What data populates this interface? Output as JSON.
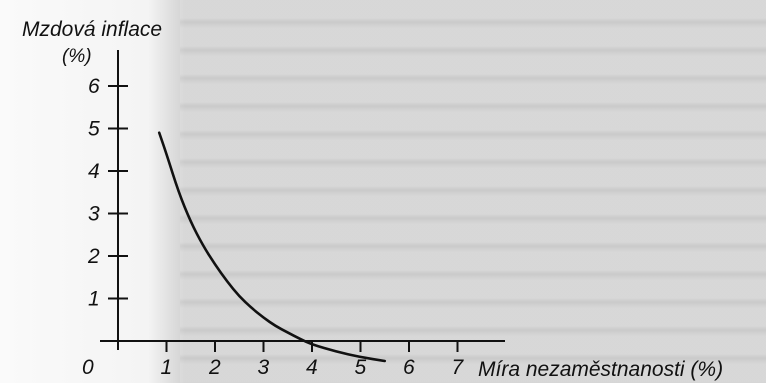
{
  "chart_data": {
    "type": "line",
    "ylabel": "Mzdová inflace",
    "yunit": "(%)",
    "xlabel": "Míra nezaměstnanosti (%)",
    "origin_label": "0",
    "x_ticks": [
      "1",
      "2",
      "3",
      "4",
      "5",
      "6",
      "7"
    ],
    "y_ticks": [
      "1",
      "2",
      "3",
      "4",
      "5",
      "6"
    ],
    "xlim": [
      0,
      7.5
    ],
    "ylim": [
      0,
      7.5
    ],
    "grid": false,
    "series": [
      {
        "color": "#111111",
        "points": [
          [
            0.85,
            4.9
          ],
          [
            1.0,
            4.4
          ],
          [
            1.25,
            3.5
          ],
          [
            1.5,
            2.8
          ],
          [
            1.75,
            2.25
          ],
          [
            2.0,
            1.8
          ],
          [
            2.25,
            1.4
          ],
          [
            2.5,
            1.05
          ],
          [
            2.75,
            0.78
          ],
          [
            3.0,
            0.55
          ],
          [
            3.25,
            0.35
          ],
          [
            3.5,
            0.2
          ],
          [
            3.75,
            0.05
          ],
          [
            4.0,
            -0.08
          ],
          [
            4.5,
            -0.25
          ],
          [
            5.0,
            -0.38
          ],
          [
            5.5,
            -0.47
          ]
        ]
      }
    ]
  }
}
